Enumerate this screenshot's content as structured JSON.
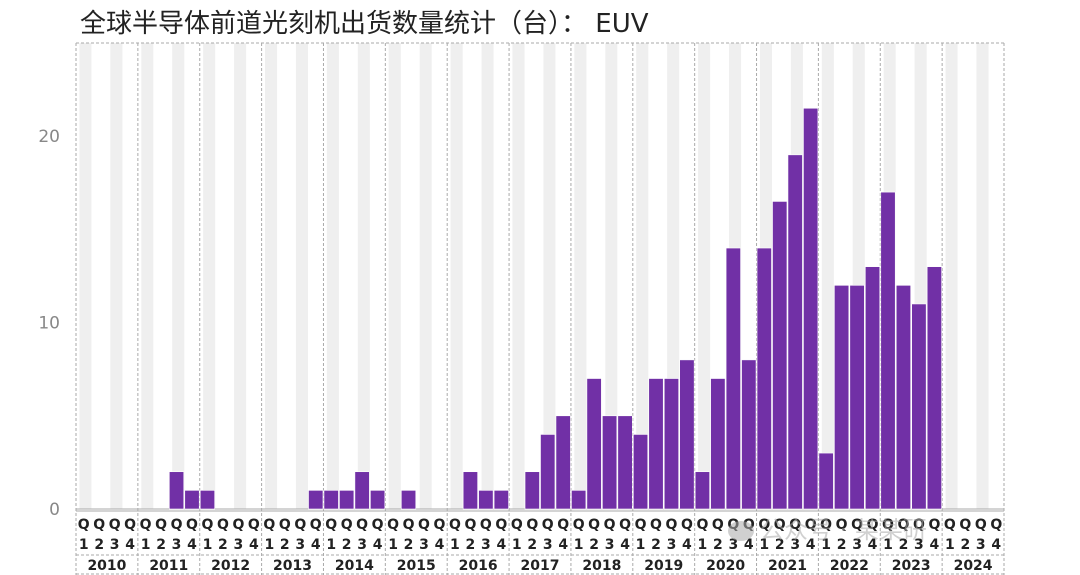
{
  "title": "全球半导体前道光刻机出货数量统计（台）： EUV",
  "watermark": "公众号 · 某某研",
  "colors": {
    "bar": "#7130A6",
    "band": "#EFEFEF",
    "grid": "#AAAAAA",
    "text": "#222222",
    "tick": "#888888"
  },
  "chart_data": {
    "type": "bar",
    "title": "全球半导体前道光刻机出货数量统计（台）： EUV",
    "xlabel": "",
    "ylabel": "",
    "ylim": [
      0,
      25
    ],
    "yticks": [
      0,
      10,
      20
    ],
    "quarter_prefix": "Q",
    "quarters": [
      "1",
      "2",
      "3",
      "4"
    ],
    "years": [
      "2010",
      "2011",
      "2012",
      "2013",
      "2014",
      "2015",
      "2016",
      "2017",
      "2018",
      "2019",
      "2020",
      "2021",
      "2022",
      "2023",
      "2024"
    ],
    "series": [
      {
        "values": [
          [
            0,
            0,
            0,
            0
          ],
          [
            0,
            0,
            2,
            1
          ],
          [
            1,
            0,
            0,
            0
          ],
          [
            0,
            0,
            0,
            1
          ],
          [
            1,
            1,
            2,
            1
          ],
          [
            0,
            1,
            0,
            0
          ],
          [
            0,
            2,
            1,
            1
          ],
          [
            0,
            2,
            4,
            5
          ],
          [
            1,
            7,
            5,
            5
          ],
          [
            4,
            7,
            7,
            8
          ],
          [
            2,
            7,
            14,
            8
          ],
          [
            14,
            16.5,
            19,
            21.5
          ],
          [
            3,
            12,
            12,
            13
          ],
          [
            17,
            12,
            11,
            13
          ],
          [
            0,
            0,
            0,
            0
          ]
        ]
      }
    ],
    "grid": false,
    "legend": "none"
  }
}
